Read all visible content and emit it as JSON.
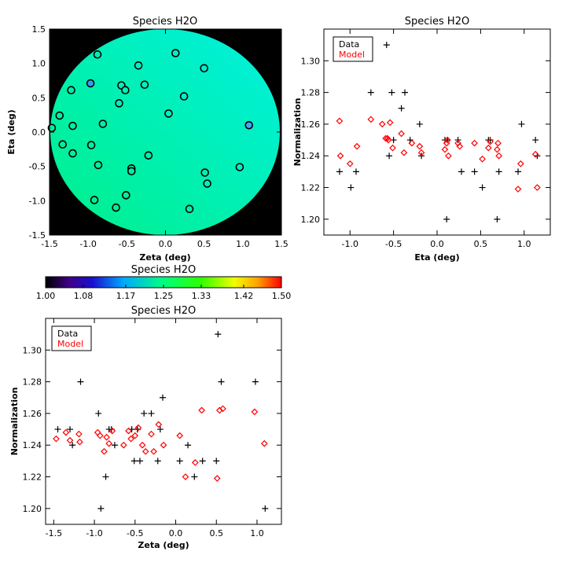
{
  "chart_data": [
    {
      "id": "map",
      "type": "scatter",
      "title": "Species H2O",
      "xlabel": "Zeta (deg)",
      "ylabel": "Eta (deg)",
      "xlim": [
        -1.5,
        1.5
      ],
      "ylim": [
        -1.5,
        1.5
      ],
      "xticks": [
        -1.5,
        -1.0,
        -0.5,
        0.0,
        0.5,
        1.0,
        1.5
      ],
      "xtick_labels": [
        "-1.5",
        "-1.0",
        "-0.5",
        "0.0",
        "0.5",
        "1.0",
        "1.5"
      ],
      "yticks": [
        -1.5,
        -1.0,
        -0.5,
        0.0,
        0.5,
        1.0,
        1.5
      ],
      "ytick_labels": [
        "-1.5",
        "-1.0",
        "-0.5",
        "0.0",
        "0.5",
        "1.0",
        "1.5"
      ],
      "background": "#000000",
      "field_colors": {
        "upper_right": "#00f0e0",
        "lower_left": "#00f08a"
      },
      "points": [
        {
          "x": -0.88,
          "y": 1.13,
          "color": "#00f0b0"
        },
        {
          "x": -0.35,
          "y": 0.97,
          "color": "#00f0c0"
        },
        {
          "x": 0.13,
          "y": 1.15,
          "color": "#00f0c8"
        },
        {
          "x": 0.5,
          "y": 0.93,
          "color": "#00f0d0"
        },
        {
          "x": -0.97,
          "y": 0.71,
          "color": "#30a0f0"
        },
        {
          "x": -0.57,
          "y": 0.68,
          "color": "#00f0b8"
        },
        {
          "x": -0.52,
          "y": 0.61,
          "color": "#00f0b8"
        },
        {
          "x": -0.27,
          "y": 0.69,
          "color": "#00f0c0"
        },
        {
          "x": -1.22,
          "y": 0.61,
          "color": "#00f0a8"
        },
        {
          "x": -0.6,
          "y": 0.42,
          "color": "#00f0b8"
        },
        {
          "x": 0.24,
          "y": 0.52,
          "color": "#00f0c8"
        },
        {
          "x": -1.37,
          "y": 0.24,
          "color": "#00f0a0"
        },
        {
          "x": -0.81,
          "y": 0.12,
          "color": "#00f0a8"
        },
        {
          "x": 0.04,
          "y": 0.27,
          "color": "#00f0c0"
        },
        {
          "x": 1.08,
          "y": 0.1,
          "color": "#40a8f0"
        },
        {
          "x": -1.47,
          "y": 0.06,
          "color": "#00f098"
        },
        {
          "x": -1.2,
          "y": 0.09,
          "color": "#00f0a0"
        },
        {
          "x": -1.33,
          "y": -0.18,
          "color": "#00f098"
        },
        {
          "x": -0.96,
          "y": -0.19,
          "color": "#00f0a0"
        },
        {
          "x": -1.2,
          "y": -0.31,
          "color": "#00f098"
        },
        {
          "x": -0.22,
          "y": -0.34,
          "color": "#00f0a8"
        },
        {
          "x": -0.87,
          "y": -0.48,
          "color": "#00f0a0"
        },
        {
          "x": -0.44,
          "y": -0.53,
          "color": "#00f0a0"
        },
        {
          "x": -0.44,
          "y": -0.57,
          "color": "#00f0a0"
        },
        {
          "x": 0.96,
          "y": -0.51,
          "color": "#00f0c0"
        },
        {
          "x": 0.51,
          "y": -0.59,
          "color": "#00f0b0"
        },
        {
          "x": 0.54,
          "y": -0.75,
          "color": "#00f0b0"
        },
        {
          "x": -0.51,
          "y": -0.92,
          "color": "#00f098"
        },
        {
          "x": -0.92,
          "y": -0.99,
          "color": "#00f090"
        },
        {
          "x": -0.64,
          "y": -1.1,
          "color": "#00f090"
        },
        {
          "x": 0.31,
          "y": -1.12,
          "color": "#00f0a8"
        }
      ]
    },
    {
      "id": "colorbar",
      "type": "heatmap",
      "title": "Species H2O",
      "range": [
        1.0,
        1.5
      ],
      "tick_labels": [
        "1.00",
        "1.08",
        "1.17",
        "1.25",
        "1.33",
        "1.42",
        "1.50"
      ]
    },
    {
      "id": "eta",
      "type": "scatter",
      "title": "Species H2O",
      "xlabel": "Eta (deg)",
      "ylabel": "Normalization",
      "xlim": [
        -1.3,
        1.3
      ],
      "ylim": [
        1.19,
        1.32
      ],
      "xticks": [
        -1.0,
        -0.5,
        0.0,
        0.5,
        1.0
      ],
      "xtick_labels": [
        "-1.0",
        "-0.5",
        "0.0",
        "0.5",
        "1.0"
      ],
      "yticks": [
        1.2,
        1.22,
        1.24,
        1.26,
        1.28,
        1.3
      ],
      "ytick_labels": [
        "1.20",
        "1.22",
        "1.24",
        "1.26",
        "1.28",
        "1.30"
      ],
      "legend": {
        "location": "top-left",
        "labels": [
          "Data",
          "Model"
        ],
        "colors": [
          "#000000",
          "#ff0000"
        ]
      },
      "series": [
        {
          "name": "Data",
          "marker": "plus",
          "color": "#000000",
          "x": [
            -1.12,
            -0.99,
            -0.93,
            -0.76,
            -0.58,
            -0.55,
            -0.52,
            -0.5,
            -0.41,
            -0.37,
            -0.31,
            -0.2,
            -0.18,
            0.09,
            0.11,
            0.12,
            0.24,
            0.28,
            0.43,
            0.52,
            0.59,
            0.61,
            0.69,
            0.71,
            0.93,
            0.97,
            1.13,
            1.15
          ],
          "y": [
            1.23,
            1.22,
            1.23,
            1.28,
            1.31,
            1.24,
            1.28,
            1.25,
            1.27,
            1.28,
            1.25,
            1.26,
            1.24,
            1.25,
            1.2,
            1.25,
            1.25,
            1.23,
            1.23,
            1.22,
            1.25,
            1.25,
            1.2,
            1.23,
            1.23,
            1.26,
            1.25,
            1.24
          ]
        },
        {
          "name": "Model",
          "marker": "diamond",
          "color": "#ff0000",
          "x": [
            -1.12,
            -1.11,
            -1.0,
            -0.92,
            -0.76,
            -0.63,
            -0.59,
            -0.57,
            -0.56,
            -0.54,
            -0.51,
            -0.41,
            -0.38,
            -0.29,
            -0.2,
            -0.18,
            0.09,
            0.11,
            0.12,
            0.13,
            0.24,
            0.26,
            0.43,
            0.52,
            0.59,
            0.61,
            0.69,
            0.7,
            0.71,
            0.93,
            0.96,
            1.13,
            1.15
          ],
          "y": [
            1.262,
            1.24,
            1.235,
            1.246,
            1.263,
            1.26,
            1.251,
            1.251,
            1.25,
            1.261,
            1.245,
            1.254,
            1.242,
            1.248,
            1.246,
            1.242,
            1.244,
            1.248,
            1.25,
            1.24,
            1.248,
            1.246,
            1.248,
            1.238,
            1.245,
            1.249,
            1.244,
            1.248,
            1.24,
            1.219,
            1.235,
            1.241,
            1.22
          ]
        }
      ]
    },
    {
      "id": "zeta",
      "type": "scatter",
      "title": "Species H2O",
      "xlabel": "Zeta (deg)",
      "ylabel": "Normalization",
      "xlim": [
        -1.6,
        1.3
      ],
      "ylim": [
        1.19,
        1.32
      ],
      "xticks": [
        -1.5,
        -1.0,
        -0.5,
        0.0,
        0.5,
        1.0
      ],
      "xtick_labels": [
        "-1.5",
        "-1.0",
        "-0.5",
        "0.0",
        "0.5",
        "1.0"
      ],
      "yticks": [
        1.2,
        1.22,
        1.24,
        1.26,
        1.28,
        1.3
      ],
      "ytick_labels": [
        "1.20",
        "1.22",
        "1.24",
        "1.26",
        "1.28",
        "1.30"
      ],
      "legend": {
        "location": "top-left",
        "labels": [
          "Data",
          "Model"
        ],
        "colors": [
          "#000000",
          "#ff0000"
        ]
      },
      "series": [
        {
          "name": "Data",
          "marker": "plus",
          "color": "#000000",
          "x": [
            -1.45,
            -1.3,
            -1.27,
            -1.17,
            -0.95,
            -0.92,
            -0.86,
            -0.82,
            -0.79,
            -0.75,
            -0.54,
            -0.51,
            -0.47,
            -0.47,
            -0.44,
            -0.39,
            -0.3,
            -0.22,
            -0.19,
            -0.16,
            0.05,
            0.15,
            0.23,
            0.33,
            0.5,
            0.52,
            0.56,
            0.98,
            1.1
          ],
          "y": [
            1.25,
            1.25,
            1.24,
            1.28,
            1.26,
            1.2,
            1.22,
            1.25,
            1.25,
            1.24,
            1.25,
            1.23,
            1.25,
            1.25,
            1.23,
            1.26,
            1.26,
            1.23,
            1.25,
            1.27,
            1.23,
            1.24,
            1.22,
            1.23,
            1.23,
            1.31,
            1.28,
            1.28,
            1.2
          ]
        },
        {
          "name": "Model",
          "marker": "diamond",
          "color": "#ff0000",
          "x": [
            -1.47,
            -1.35,
            -1.3,
            -1.19,
            -1.18,
            -0.96,
            -0.93,
            -0.88,
            -0.85,
            -0.82,
            -0.78,
            -0.64,
            -0.58,
            -0.55,
            -0.5,
            -0.46,
            -0.41,
            -0.37,
            -0.3,
            -0.27,
            -0.21,
            -0.15,
            0.05,
            0.12,
            0.24,
            0.32,
            0.51,
            0.54,
            0.58,
            0.97,
            1.09
          ],
          "y": [
            1.244,
            1.248,
            1.243,
            1.247,
            1.242,
            1.248,
            1.246,
            1.236,
            1.245,
            1.241,
            1.249,
            1.24,
            1.249,
            1.244,
            1.246,
            1.251,
            1.24,
            1.236,
            1.247,
            1.236,
            1.253,
            1.24,
            1.246,
            1.22,
            1.229,
            1.262,
            1.219,
            1.262,
            1.263,
            1.261,
            1.241
          ]
        }
      ]
    }
  ]
}
